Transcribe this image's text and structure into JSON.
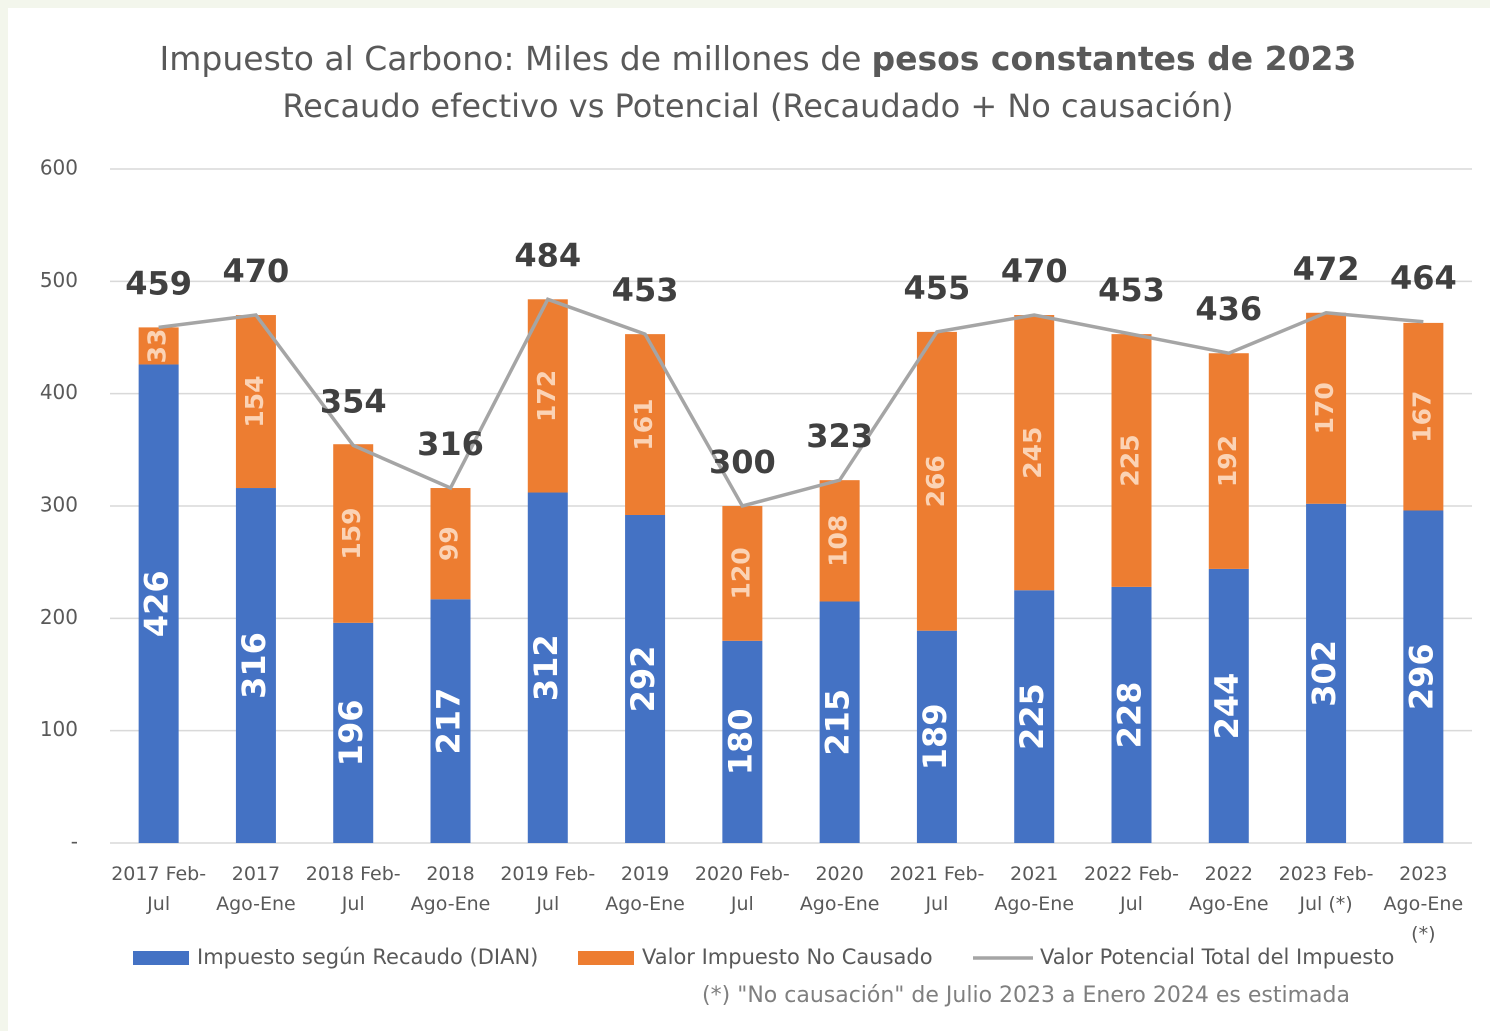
{
  "chart_data": {
    "type": "stacked-bar-line",
    "title": {
      "normal": "Impuesto al Carbono: Miles de millones de",
      "bold": "pesos constantes de 2023"
    },
    "subtitle": "Recaudo efectivo vs Potencial (Recaudado + No causación)",
    "footnote": "(*) \"No causación\" de Julio 2023 a Enero 2024 es estimada",
    "categories": [
      "2017 Feb-Jul",
      "2017 Ago-Ene",
      "2018 Feb-Jul",
      "2018 Ago-Ene",
      "2019 Feb-Jul",
      "2019 Ago-Ene",
      "2020 Feb-Jul",
      "2020 Ago-Ene",
      "2021 Feb-Jul",
      "2021 Ago-Ene",
      "2022 Feb-Jul",
      "2022 Ago-Ene",
      "2023 Feb-Jul (*)",
      "2023 Ago-Ene (*)"
    ],
    "series": [
      {
        "name": "Impuesto según Recaudo (DIAN)",
        "type": "bar",
        "color": "#4472c4",
        "values": [
          426,
          316,
          196,
          217,
          312,
          292,
          180,
          215,
          189,
          225,
          228,
          244,
          302,
          296
        ]
      },
      {
        "name": "Valor Impuesto No Causado",
        "type": "bar",
        "color": "#ed7d31",
        "values": [
          33,
          154,
          159,
          99,
          172,
          161,
          120,
          108,
          266,
          245,
          225,
          192,
          170,
          167
        ]
      },
      {
        "name": "Valor Potencial Total del Impuesto",
        "type": "line",
        "color": "#a5a5a5",
        "values": [
          459,
          470,
          354,
          316,
          484,
          453,
          300,
          323,
          455,
          470,
          453,
          436,
          472,
          464
        ]
      }
    ],
    "ylim": [
      0,
      600
    ],
    "yticks": [
      {
        "value": 0,
        "label": "-"
      },
      100,
      200,
      300,
      400,
      500,
      600
    ],
    "grid": true,
    "legend": "bottom"
  }
}
